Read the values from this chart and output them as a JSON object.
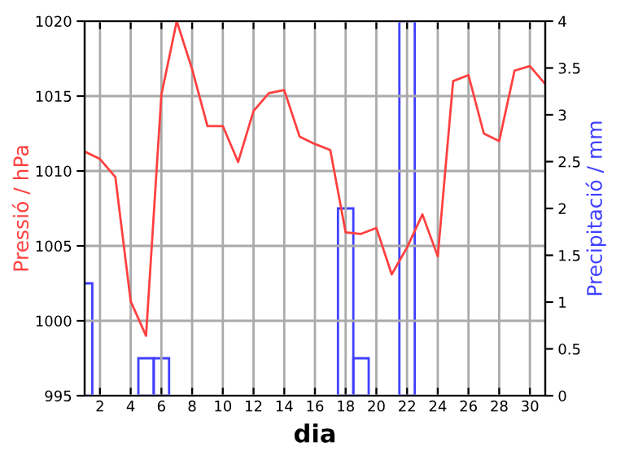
{
  "chart_data": {
    "type": "line",
    "xlabel": "dia",
    "ylabel": "Pressió / hPa",
    "y2label": "Precipitació / mm",
    "xlim": [
      1,
      31
    ],
    "xticks": [
      2,
      4,
      6,
      8,
      10,
      12,
      14,
      16,
      18,
      20,
      22,
      24,
      26,
      28,
      30
    ],
    "ylim": [
      995,
      1020
    ],
    "yticks": [
      995,
      1000,
      1005,
      1010,
      1015,
      1020
    ],
    "y2lim": [
      0,
      4
    ],
    "y2ticks": [
      0,
      0.5,
      1,
      1.5,
      2,
      2.5,
      3,
      3.5,
      4
    ],
    "grid": true,
    "legend": false,
    "series": [
      {
        "color": "#ff4040",
        "x": [
          1,
          2,
          3,
          4,
          5,
          6,
          7,
          8,
          9,
          10,
          11,
          12,
          13,
          14,
          15,
          16,
          17,
          18,
          19,
          20,
          21,
          22,
          23,
          24,
          25,
          26,
          27,
          28,
          29,
          30,
          31
        ],
        "values": [
          1011.3,
          1010.8,
          1009.6,
          1001.3,
          999.0,
          1015.1,
          1020.0,
          1016.8,
          1013.0,
          1013.0,
          1010.6,
          1014.0,
          1015.2,
          1015.4,
          1012.3,
          1011.8,
          1011.4,
          1005.9,
          1005.8,
          1006.2,
          1003.1,
          1004.9,
          1007.1,
          1004.3,
          1016.0,
          1016.4,
          1012.5,
          1012.0,
          1016.7,
          1017.0,
          1015.8
        ]
      },
      {
        "type": "bar",
        "axis": "y2",
        "color": "#4040ff",
        "x": [
          1,
          5,
          6,
          18,
          19,
          22
        ],
        "values": [
          1.2,
          0.4,
          0.4,
          2.0,
          0.4,
          4.0
        ]
      }
    ]
  }
}
